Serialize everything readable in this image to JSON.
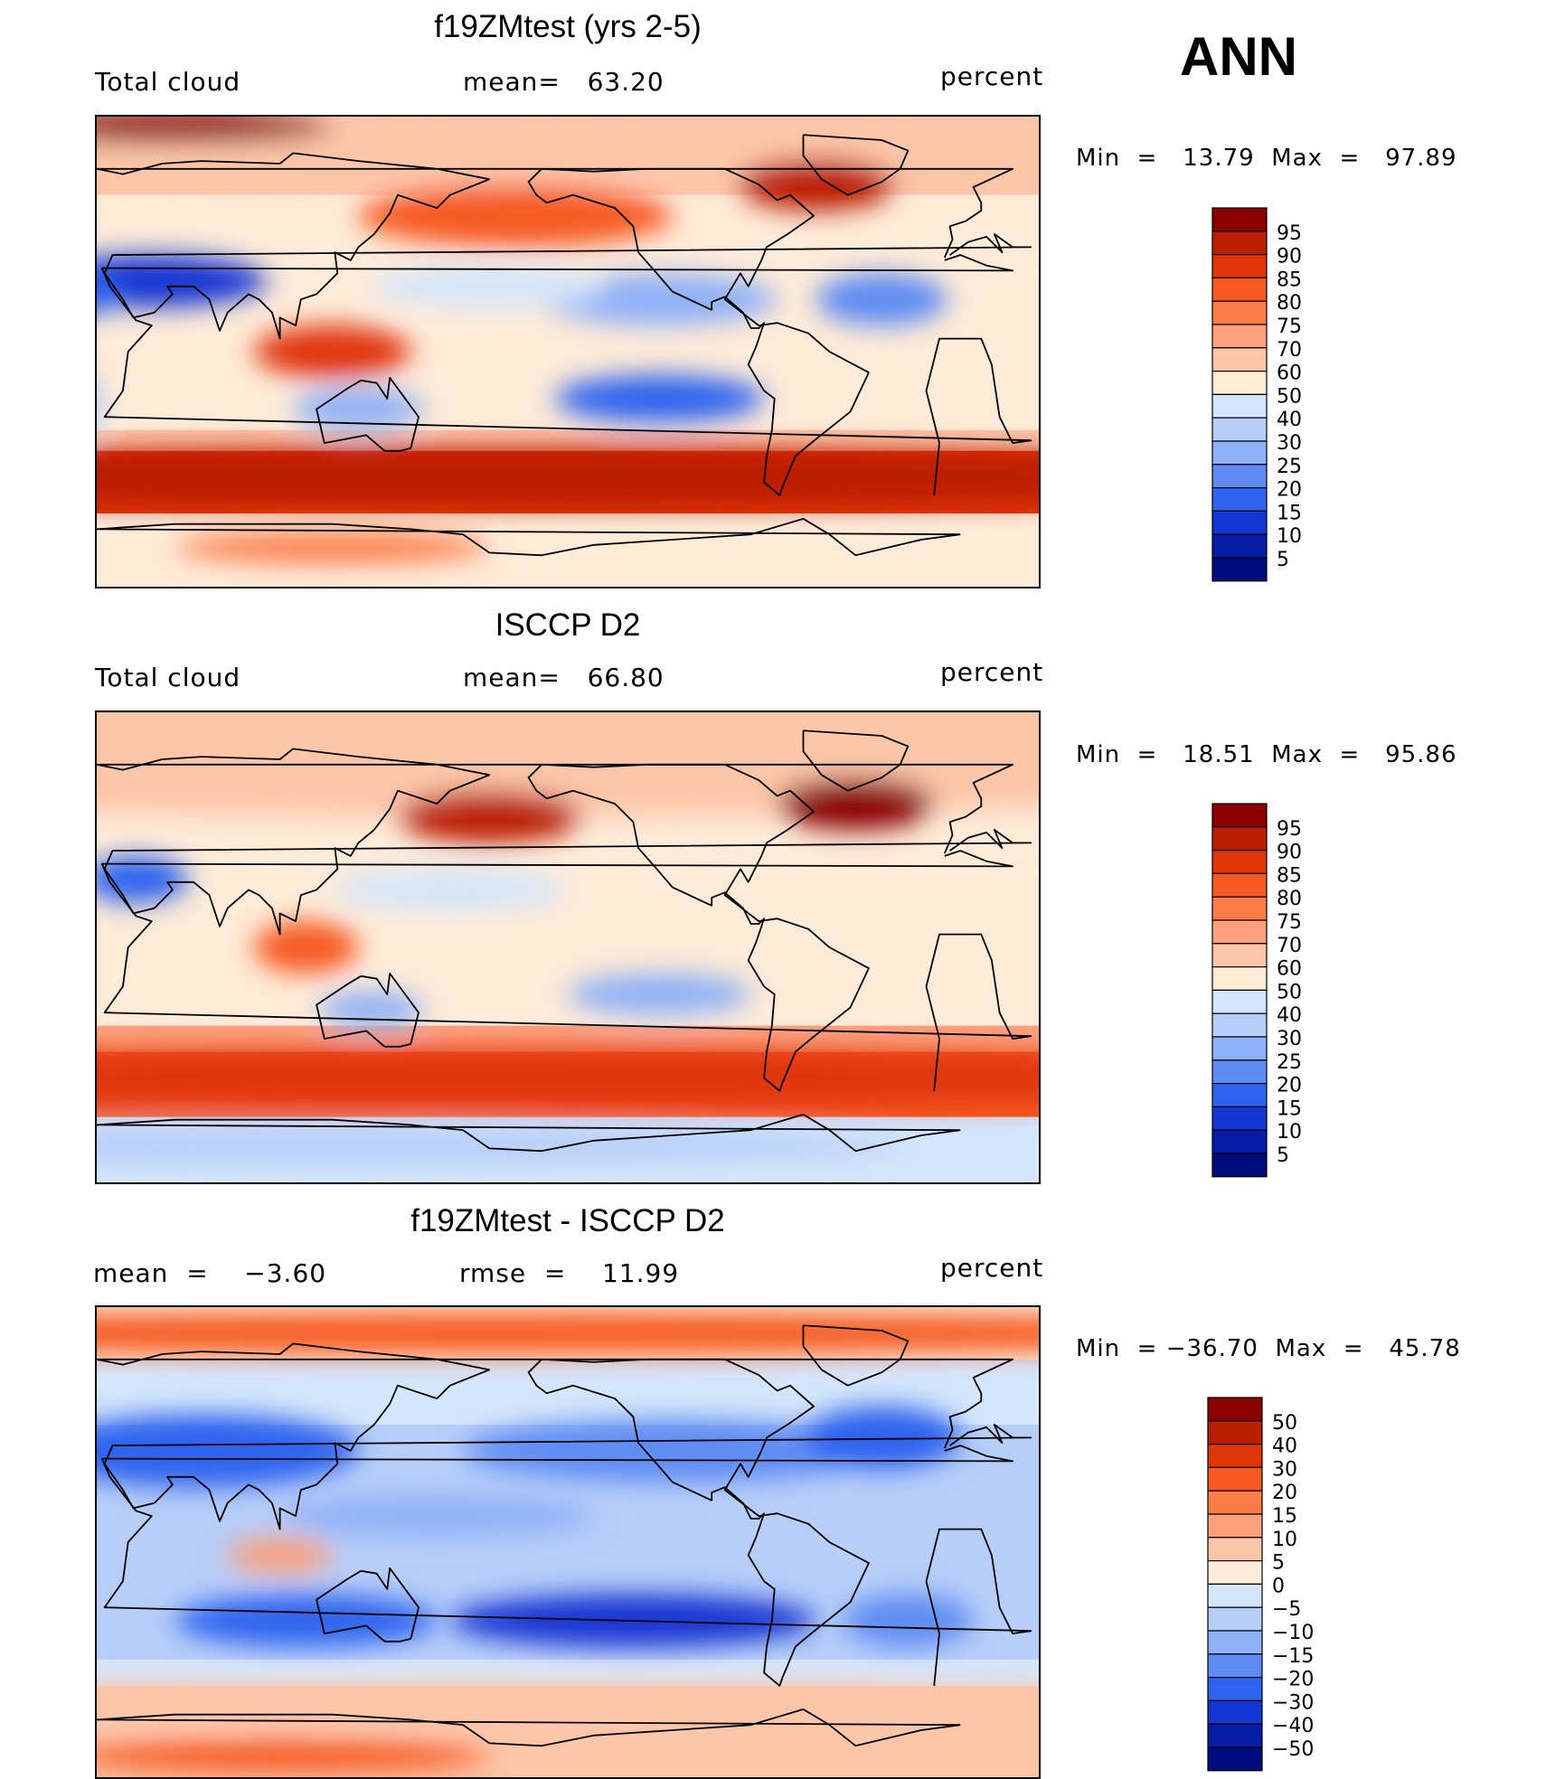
{
  "season": "ANN",
  "panels": [
    {
      "title": "f19ZMtest (yrs 2-5)",
      "left_label": "Total cloud",
      "center_label": "mean=   63.20",
      "right_label": "percent",
      "minmax": "Min  =   13.79  Max  =   97.89",
      "field_type": "model"
    },
    {
      "title": "ISCCP D2",
      "left_label": "Total cloud",
      "center_label": "mean=   66.80",
      "right_label": "percent",
      "minmax": "Min  =   18.51  Max  =   95.86",
      "field_type": "obs"
    },
    {
      "title": "f19ZMtest - ISCCP D2",
      "left_label": "mean  =    −3.60",
      "center_label": "rmse  =    11.99",
      "right_label": "percent",
      "minmax": "Min  = −36.70  Max  =   45.78",
      "field_type": "diff"
    }
  ],
  "colorbars": {
    "abs_levels": [
      "95",
      "90",
      "85",
      "80",
      "75",
      "70",
      "60",
      "50",
      "40",
      "30",
      "25",
      "20",
      "15",
      "10",
      "5"
    ],
    "abs_colors": [
      "#8b0000",
      "#bb1e00",
      "#e03508",
      "#f65a22",
      "#fc7d48",
      "#fda07e",
      "#fdc6a9",
      "#feebd8",
      "#d4e6fb",
      "#b7cef9",
      "#8fb1f7",
      "#5e8cf3",
      "#2f63ef",
      "#1436d3",
      "#061ea6",
      "#000c7c"
    ],
    "diff_levels": [
      "50",
      "40",
      "30",
      "20",
      "15",
      "10",
      "5",
      "0",
      "−5",
      "−10",
      "−15",
      "−20",
      "−30",
      "−40",
      "−50"
    ],
    "diff_colors": [
      "#8b0000",
      "#bb1e00",
      "#e03508",
      "#f65a22",
      "#fc7d48",
      "#fda07e",
      "#fdc6a9",
      "#feebd8",
      "#d4e6fb",
      "#b7cef9",
      "#8fb1f7",
      "#5e8cf3",
      "#2f63ef",
      "#1436d3",
      "#061ea6",
      "#000c7c"
    ]
  },
  "chart_data": [
    {
      "type": "heatmap",
      "title": "f19ZMtest (yrs 2-5)",
      "field": "Total cloud",
      "units": "percent",
      "mean": 63.2,
      "min": 13.79,
      "max": 97.89,
      "levels": [
        5,
        10,
        15,
        20,
        25,
        30,
        40,
        50,
        60,
        70,
        75,
        80,
        85,
        90,
        95
      ]
    },
    {
      "type": "heatmap",
      "title": "ISCCP D2",
      "field": "Total cloud",
      "units": "percent",
      "mean": 66.8,
      "min": 18.51,
      "max": 95.86,
      "levels": [
        5,
        10,
        15,
        20,
        25,
        30,
        40,
        50,
        60,
        70,
        75,
        80,
        85,
        90,
        95
      ]
    },
    {
      "type": "heatmap",
      "title": "f19ZMtest - ISCCP D2",
      "units": "percent",
      "mean": -3.6,
      "rmse": 11.99,
      "min": -36.7,
      "max": 45.78,
      "levels": [
        -50,
        -40,
        -30,
        -20,
        -15,
        -10,
        -5,
        0,
        5,
        10,
        15,
        20,
        30,
        40,
        50
      ]
    }
  ]
}
